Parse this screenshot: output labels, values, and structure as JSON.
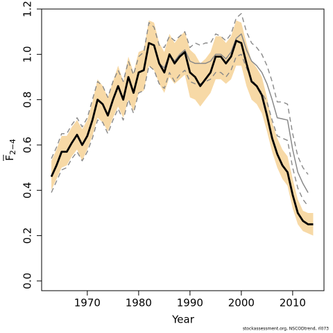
{
  "chart_data": {
    "type": "line",
    "xlabel": "Year",
    "ylabel": "F",
    "ylabel_sub": "2−4",
    "caption": "stockassessment.org, NSCODtrend, rl073",
    "x": [
      1963,
      1964,
      1965,
      1966,
      1967,
      1968,
      1969,
      1970,
      1971,
      1972,
      1973,
      1974,
      1975,
      1976,
      1977,
      1978,
      1979,
      1980,
      1981,
      1982,
      1983,
      1984,
      1985,
      1986,
      1987,
      1988,
      1989,
      1990,
      1991,
      1992,
      1993,
      1994,
      1995,
      1996,
      1997,
      1998,
      1999,
      2000,
      2001,
      2002,
      2003,
      2004,
      2005,
      2006,
      2007,
      2008,
      2009,
      2010,
      2011,
      2012,
      2013,
      2014
    ],
    "band": {
      "color": "#f7d9a6",
      "lower": [
        0.4,
        0.45,
        0.5,
        0.51,
        0.55,
        0.58,
        0.53,
        0.58,
        0.64,
        0.72,
        0.7,
        0.66,
        0.72,
        0.77,
        0.72,
        0.8,
        0.75,
        0.83,
        0.84,
        0.95,
        0.93,
        0.87,
        0.83,
        0.9,
        0.87,
        0.89,
        0.91,
        0.81,
        0.8,
        0.77,
        0.8,
        0.83,
        0.89,
        0.89,
        0.87,
        0.89,
        0.95,
        0.95,
        0.86,
        0.8,
        0.78,
        0.74,
        0.66,
        0.57,
        0.5,
        0.45,
        0.42,
        0.32,
        0.25,
        0.22,
        0.21,
        0.2
      ],
      "upper": [
        0.53,
        0.58,
        0.64,
        0.64,
        0.68,
        0.71,
        0.67,
        0.71,
        0.79,
        0.89,
        0.86,
        0.81,
        0.88,
        0.95,
        0.88,
        0.99,
        0.92,
        1.01,
        1.02,
        1.15,
        1.14,
        1.05,
        1.01,
        1.09,
        1.05,
        1.08,
        1.1,
        1.02,
        1.0,
        0.96,
        0.98,
        1.01,
        1.08,
        1.08,
        1.05,
        1.08,
        1.15,
        1.14,
        1.05,
        0.97,
        0.94,
        0.9,
        0.81,
        0.7,
        0.63,
        0.58,
        0.55,
        0.45,
        0.36,
        0.31,
        0.3,
        0.3
      ]
    },
    "series": [
      {
        "color": "#888888",
        "width": 1.4,
        "dashed": true,
        "values": [
          0.54,
          0.59,
          0.65,
          0.65,
          0.69,
          0.72,
          0.68,
          0.72,
          0.8,
          0.88,
          0.86,
          0.81,
          0.88,
          0.93,
          0.88,
          0.97,
          0.91,
          0.99,
          1.01,
          1.14,
          1.12,
          1.04,
          1.03,
          1.08,
          1.06,
          1.08,
          1.1,
          1.03,
          1.05,
          1.04,
          1.05,
          1.05,
          1.09,
          1.08,
          1.06,
          1.09,
          1.16,
          1.18,
          1.1,
          1.05,
          1.03,
          1.0,
          0.95,
          0.88,
          0.79,
          0.79,
          0.78,
          0.65,
          0.55,
          0.5,
          0.47,
          null
        ]
      },
      {
        "color": "#888888",
        "width": 1.4,
        "dashed": true,
        "values": [
          0.39,
          0.44,
          0.49,
          0.5,
          0.54,
          0.57,
          0.53,
          0.57,
          0.63,
          0.71,
          0.7,
          0.65,
          0.71,
          0.76,
          0.71,
          0.8,
          0.74,
          0.83,
          0.84,
          0.95,
          0.93,
          0.87,
          0.85,
          0.92,
          0.88,
          0.91,
          0.93,
          0.88,
          0.87,
          0.87,
          0.88,
          0.89,
          0.92,
          0.92,
          0.9,
          0.93,
          0.99,
          1.0,
          0.94,
          0.89,
          0.86,
          0.83,
          0.79,
          0.71,
          0.64,
          0.63,
          0.62,
          0.5,
          0.41,
          0.36,
          0.33,
          null
        ]
      },
      {
        "color": "#888888",
        "width": 1.5,
        "dashed": false,
        "values": [
          0.46,
          0.51,
          0.57,
          0.57,
          0.61,
          0.645,
          0.6,
          0.64,
          0.71,
          0.8,
          0.78,
          0.73,
          0.8,
          0.86,
          0.8,
          0.9,
          0.83,
          0.92,
          0.93,
          1.05,
          1.04,
          0.96,
          0.94,
          1.0,
          0.97,
          1.0,
          1.02,
          0.97,
          0.96,
          0.96,
          0.96,
          0.97,
          1.0,
          1.0,
          0.98,
          1.01,
          1.07,
          1.09,
          1.02,
          0.97,
          0.95,
          0.92,
          0.87,
          0.8,
          0.72,
          0.715,
          0.71,
          0.58,
          0.48,
          0.43,
          0.39,
          null
        ]
      },
      {
        "color": "#000000",
        "width": 2.8,
        "dashed": false,
        "values": [
          0.46,
          0.51,
          0.57,
          0.57,
          0.61,
          0.645,
          0.6,
          0.64,
          0.71,
          0.8,
          0.78,
          0.73,
          0.8,
          0.86,
          0.8,
          0.9,
          0.83,
          0.92,
          0.93,
          1.05,
          1.04,
          0.96,
          0.92,
          1.0,
          0.96,
          0.99,
          1.01,
          0.92,
          0.9,
          0.86,
          0.89,
          0.92,
          0.99,
          0.99,
          0.96,
          0.99,
          1.06,
          1.05,
          0.96,
          0.88,
          0.86,
          0.82,
          0.73,
          0.63,
          0.56,
          0.51,
          0.48,
          0.38,
          0.3,
          0.265,
          0.25,
          0.25
        ]
      }
    ],
    "xlim": [
      1961.1,
      2016.1
    ],
    "xticks": [
      1970,
      1980,
      1990,
      2000,
      2010
    ],
    "ylim": [
      -0.043,
      1.2
    ],
    "yticks": [
      {
        "value": 0,
        "label": "0.0"
      },
      0.2,
      0.4,
      0.6,
      0.8,
      {
        "value": 1,
        "label": "1.0"
      },
      1.2
    ]
  }
}
